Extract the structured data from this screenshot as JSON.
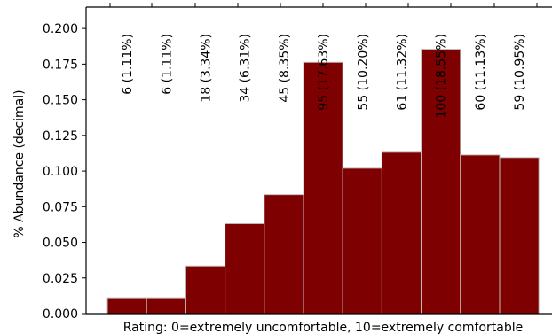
{
  "chart_data": {
    "type": "bar",
    "title": "",
    "xlabel": "Rating: 0=extremely uncomfortable, 10=extremely comfortable",
    "ylabel": "% Abundance (decimal)",
    "ylim": [
      0,
      0.215
    ],
    "yticks": [
      "0.000",
      "0.025",
      "0.050",
      "0.075",
      "0.100",
      "0.125",
      "0.150",
      "0.175",
      "0.200"
    ],
    "bar_color": "#7f0000",
    "edge_color": "#bfbfbf",
    "grid": false,
    "bars": [
      {
        "value": 0.0111,
        "label": "6  (1.11%)"
      },
      {
        "value": 0.0111,
        "label": "6  (1.11%)"
      },
      {
        "value": 0.0334,
        "label": "18  (3.34%)"
      },
      {
        "value": 0.0631,
        "label": "34  (6.31%)"
      },
      {
        "value": 0.0835,
        "label": "45  (8.35%)"
      },
      {
        "value": 0.1763,
        "label": "95  (17.63%)"
      },
      {
        "value": 0.102,
        "label": "55  (10.20%)"
      },
      {
        "value": 0.1132,
        "label": "61  (11.32%)"
      },
      {
        "value": 0.1855,
        "label": "100  (18.55%)"
      },
      {
        "value": 0.1113,
        "label": "60  (11.13%)"
      },
      {
        "value": 0.1095,
        "label": "59  (10.95%)"
      }
    ]
  }
}
